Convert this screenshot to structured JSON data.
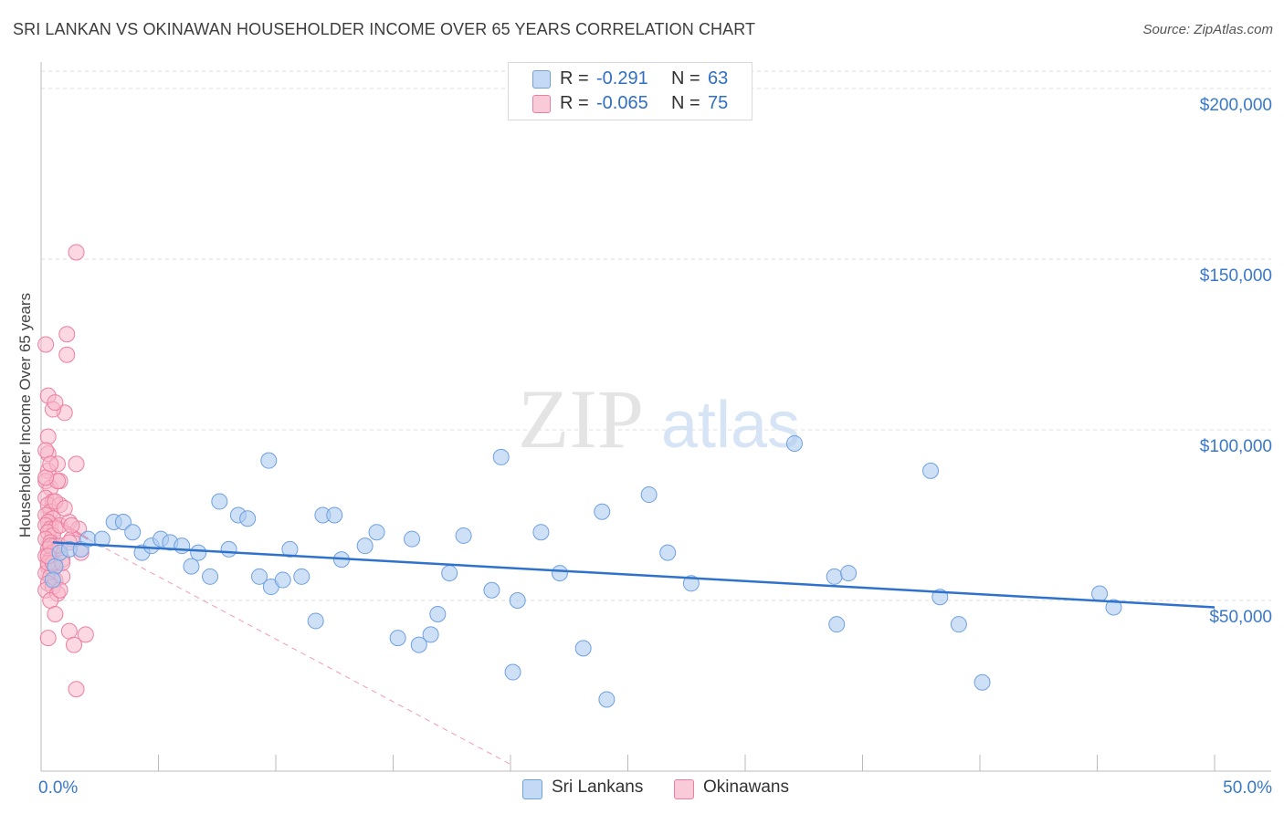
{
  "title": "SRI LANKAN VS OKINAWAN HOUSEHOLDER INCOME OVER 65 YEARS CORRELATION CHART",
  "source": "Source: ZipAtlas.com",
  "watermark": {
    "part1": "ZIP",
    "part2": "atlas"
  },
  "legend": {
    "rows": [
      {
        "r_label": "R =",
        "r_value": "-0.291",
        "n_label": "N =",
        "n_value": "63"
      },
      {
        "r_label": "R =",
        "r_value": "-0.065",
        "n_label": "N =",
        "n_value": "75"
      }
    ]
  },
  "colors": {
    "blue_fill": "#aecbf0",
    "blue_stroke": "#6fa0e0",
    "blue_line": "#2f72cc",
    "pink_fill": "#f7b8cb",
    "pink_stroke": "#ec7fa1",
    "pink_line": "#e8588a",
    "axis_text": "#3a78c9",
    "grid": "#dddddd"
  },
  "chart_data": {
    "type": "scatter",
    "title": "SRI LANKAN VS OKINAWAN HOUSEHOLDER INCOME OVER 65 YEARS CORRELATION CHART",
    "xlabel": "",
    "ylabel": "Householder Income Over 65 years",
    "xlim": [
      0,
      50
    ],
    "ylim": [
      0,
      210000
    ],
    "x_tick_labels": [
      "0.0%",
      "50.0%"
    ],
    "y_ticks": [
      50000,
      100000,
      150000,
      200000
    ],
    "y_tick_labels": [
      "$50,000",
      "$100,000",
      "$150,000",
      "$200,000"
    ],
    "grid": "horizontal dashed",
    "legend_position": "top-center",
    "series": [
      {
        "name": "Sri Lankans",
        "color": "#aecbf0",
        "trend": {
          "x": [
            0.5,
            50
          ],
          "y": [
            67000,
            48000
          ],
          "style": "solid"
        },
        "points": [
          [
            0.6,
            60000
          ],
          [
            0.8,
            64000
          ],
          [
            1.2,
            65000
          ],
          [
            1.7,
            65000
          ],
          [
            2.0,
            68000
          ],
          [
            2.6,
            68000
          ],
          [
            3.1,
            73000
          ],
          [
            3.5,
            73000
          ],
          [
            3.9,
            70000
          ],
          [
            4.3,
            64000
          ],
          [
            4.7,
            66000
          ],
          [
            5.1,
            68000
          ],
          [
            5.5,
            67000
          ],
          [
            6.0,
            66000
          ],
          [
            6.4,
            60000
          ],
          [
            6.7,
            64000
          ],
          [
            7.2,
            57000
          ],
          [
            7.6,
            79000
          ],
          [
            8.0,
            65000
          ],
          [
            8.4,
            75000
          ],
          [
            8.8,
            74000
          ],
          [
            9.3,
            57000
          ],
          [
            9.7,
            91000
          ],
          [
            9.8,
            54000
          ],
          [
            10.3,
            56000
          ],
          [
            10.6,
            65000
          ],
          [
            11.1,
            57000
          ],
          [
            11.7,
            44000
          ],
          [
            12.0,
            75000
          ],
          [
            12.5,
            75000
          ],
          [
            12.8,
            62000
          ],
          [
            13.8,
            66000
          ],
          [
            14.3,
            70000
          ],
          [
            15.2,
            39000
          ],
          [
            15.8,
            68000
          ],
          [
            16.1,
            37000
          ],
          [
            16.6,
            40000
          ],
          [
            16.9,
            46000
          ],
          [
            17.4,
            58000
          ],
          [
            18.0,
            69000
          ],
          [
            19.2,
            53000
          ],
          [
            19.6,
            92000
          ],
          [
            20.1,
            29000
          ],
          [
            20.3,
            50000
          ],
          [
            21.3,
            70000
          ],
          [
            22.1,
            58000
          ],
          [
            23.1,
            36000
          ],
          [
            23.9,
            76000
          ],
          [
            24.1,
            21000
          ],
          [
            25.9,
            81000
          ],
          [
            26.7,
            64000
          ],
          [
            27.7,
            55000
          ],
          [
            32.1,
            96000
          ],
          [
            33.8,
            57000
          ],
          [
            33.9,
            43000
          ],
          [
            34.4,
            58000
          ],
          [
            37.9,
            88000
          ],
          [
            38.3,
            51000
          ],
          [
            39.1,
            43000
          ],
          [
            40.1,
            26000
          ],
          [
            45.1,
            52000
          ],
          [
            45.7,
            48000
          ],
          [
            0.5,
            56000
          ]
        ]
      },
      {
        "name": "Okinawans",
        "color": "#f7b8cb",
        "trend": {
          "x": [
            0.1,
            2.0
          ],
          "y": [
            76000,
            68000
          ],
          "style": "solid",
          "extended": {
            "x": [
              2.0,
              20.0
            ],
            "y": [
              68000,
              2000
            ],
            "style": "dashed"
          }
        },
        "points": [
          [
            0.2,
            125000
          ],
          [
            0.3,
            110000
          ],
          [
            0.3,
            98000
          ],
          [
            0.3,
            93000
          ],
          [
            0.3,
            88000
          ],
          [
            0.2,
            85000
          ],
          [
            0.4,
            83000
          ],
          [
            0.2,
            80000
          ],
          [
            0.5,
            79000
          ],
          [
            0.3,
            78000
          ],
          [
            0.4,
            76000
          ],
          [
            0.2,
            75000
          ],
          [
            0.5,
            74000
          ],
          [
            0.3,
            73000
          ],
          [
            0.2,
            72000
          ],
          [
            0.4,
            71000
          ],
          [
            0.6,
            71000
          ],
          [
            0.3,
            70000
          ],
          [
            0.5,
            69000
          ],
          [
            0.2,
            68000
          ],
          [
            0.4,
            67000
          ],
          [
            0.6,
            66000
          ],
          [
            0.3,
            65000
          ],
          [
            0.5,
            64000
          ],
          [
            0.2,
            63000
          ],
          [
            0.4,
            62000
          ],
          [
            0.6,
            61000
          ],
          [
            0.3,
            60000
          ],
          [
            0.5,
            59000
          ],
          [
            0.2,
            58000
          ],
          [
            0.4,
            57000
          ],
          [
            0.6,
            56000
          ],
          [
            0.3,
            55000
          ],
          [
            0.5,
            54000
          ],
          [
            0.2,
            53000
          ],
          [
            0.7,
            52000
          ],
          [
            0.4,
            50000
          ],
          [
            0.6,
            46000
          ],
          [
            0.3,
            39000
          ],
          [
            0.7,
            90000
          ],
          [
            0.8,
            85000
          ],
          [
            0.8,
            78000
          ],
          [
            0.8,
            72000
          ],
          [
            0.8,
            66000
          ],
          [
            0.9,
            62000
          ],
          [
            0.9,
            57000
          ],
          [
            1.0,
            105000
          ],
          [
            1.1,
            128000
          ],
          [
            1.1,
            122000
          ],
          [
            1.2,
            73000
          ],
          [
            1.3,
            68000
          ],
          [
            1.2,
            41000
          ],
          [
            1.4,
            37000
          ],
          [
            1.5,
            90000
          ],
          [
            1.5,
            152000
          ],
          [
            1.6,
            71000
          ],
          [
            1.7,
            64000
          ],
          [
            1.9,
            40000
          ],
          [
            1.5,
            24000
          ],
          [
            0.5,
            106000
          ],
          [
            0.6,
            108000
          ],
          [
            0.7,
            85000
          ],
          [
            0.2,
            94000
          ],
          [
            0.2,
            86000
          ],
          [
            0.4,
            66000
          ],
          [
            0.3,
            61000
          ],
          [
            0.5,
            61000
          ],
          [
            0.9,
            61000
          ],
          [
            1.2,
            67000
          ],
          [
            0.4,
            90000
          ],
          [
            0.6,
            79000
          ],
          [
            1.0,
            77000
          ],
          [
            0.8,
            53000
          ],
          [
            0.3,
            63000
          ],
          [
            1.3,
            72000
          ]
        ]
      }
    ]
  }
}
